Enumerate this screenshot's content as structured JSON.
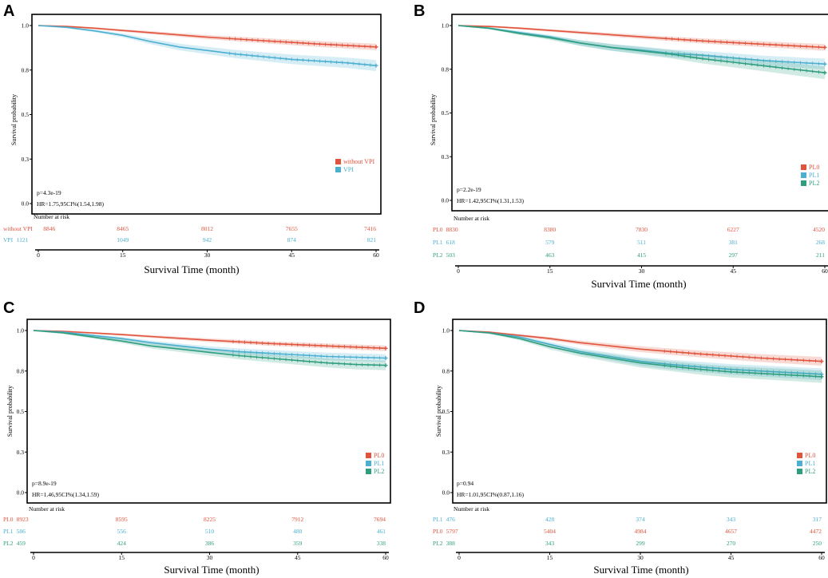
{
  "chart_data": [
    {
      "type": "line",
      "panel": "A",
      "ylabel": "Survival probability",
      "xlabel": "Survival Time (month)",
      "yticks": [
        "1.0",
        "0.8",
        "0.5",
        "0.3",
        "0.0"
      ],
      "xticks": [
        "0",
        "15",
        "30",
        "45",
        "60"
      ],
      "xlim": [
        0,
        60
      ],
      "ylim": [
        0,
        1
      ],
      "p_value": "p=4.3e-19",
      "hr": "HR=1.75,95CI%(1.54,1.98)",
      "risk_title": "Number at risk",
      "series": [
        {
          "name": "without VPI",
          "color": "#e0533c",
          "x": [
            0,
            5,
            10,
            15,
            20,
            30,
            40,
            50,
            60
          ],
          "y": [
            1.0,
            0.995,
            0.985,
            0.972,
            0.96,
            0.935,
            0.915,
            0.896,
            0.88
          ],
          "risk": [
            "8846",
            "8465",
            "8012",
            "7655",
            "7416"
          ]
        },
        {
          "name": "VPI",
          "color": "#4bafd0",
          "x": [
            0,
            5,
            10,
            15,
            20,
            25,
            30,
            35,
            40,
            45,
            50,
            55,
            60
          ],
          "y": [
            1.0,
            0.99,
            0.97,
            0.945,
            0.91,
            0.88,
            0.86,
            0.84,
            0.825,
            0.81,
            0.8,
            0.79,
            0.775
          ],
          "risk": [
            "1121",
            "1049",
            "942",
            "874",
            "821"
          ]
        }
      ]
    },
    {
      "type": "line",
      "panel": "B",
      "ylabel": "Survival probability",
      "xlabel": "Survival Time (month)",
      "yticks": [
        "1.0",
        "0.8",
        "0.5",
        "0.3",
        "0.0"
      ],
      "xticks": [
        "0",
        "15",
        "30",
        "45",
        "60"
      ],
      "xlim": [
        0,
        60
      ],
      "ylim": [
        0,
        1
      ],
      "p_value": "p=2.2e-19",
      "hr": "HR=1.42,95CI%(1.31,1.53)",
      "risk_title": "Number at risk",
      "series": [
        {
          "name": "PL0",
          "color": "#e0533c",
          "x": [
            0,
            5,
            10,
            15,
            20,
            30,
            40,
            50,
            60
          ],
          "y": [
            1.0,
            0.995,
            0.985,
            0.972,
            0.96,
            0.935,
            0.912,
            0.893,
            0.875
          ],
          "risk": [
            "8830",
            "8380",
            "7830",
            "6227",
            "4520"
          ]
        },
        {
          "name": "PL1",
          "color": "#4bafd0",
          "x": [
            0,
            5,
            10,
            15,
            20,
            25,
            30,
            35,
            40,
            45,
            50,
            55,
            60
          ],
          "y": [
            1.0,
            0.985,
            0.96,
            0.935,
            0.9,
            0.875,
            0.86,
            0.84,
            0.83,
            0.815,
            0.8,
            0.79,
            0.78
          ],
          "risk": [
            "618",
            "579",
            "511",
            "381",
            "268"
          ]
        },
        {
          "name": "PL2",
          "color": "#2e9e7f",
          "x": [
            0,
            5,
            10,
            15,
            20,
            25,
            30,
            35,
            40,
            45,
            50,
            55,
            60
          ],
          "y": [
            1.0,
            0.985,
            0.955,
            0.93,
            0.9,
            0.875,
            0.855,
            0.835,
            0.81,
            0.79,
            0.77,
            0.75,
            0.73
          ],
          "risk": [
            "503",
            "463",
            "415",
            "297",
            "211"
          ]
        }
      ]
    },
    {
      "type": "line",
      "panel": "C",
      "ylabel": "Survival probability",
      "xlabel": "Survival Time (month)",
      "yticks": [
        "1.0",
        "0.8",
        "0.5",
        "0.3",
        "0.0"
      ],
      "xticks": [
        "0",
        "15",
        "30",
        "45",
        "60"
      ],
      "xlim": [
        0,
        60
      ],
      "ylim": [
        0,
        1
      ],
      "p_value": "p=8.9e-19",
      "hr": "HR=1.46,95CI%(1.34,1.59)",
      "risk_title": "Number at risk",
      "series": [
        {
          "name": "PL0",
          "color": "#e0533c",
          "x": [
            0,
            5,
            10,
            15,
            20,
            30,
            40,
            50,
            60
          ],
          "y": [
            1.0,
            0.995,
            0.985,
            0.975,
            0.963,
            0.94,
            0.92,
            0.905,
            0.89
          ],
          "risk": [
            "8923",
            "8595",
            "8225",
            "7912",
            "7694"
          ]
        },
        {
          "name": "PL1",
          "color": "#4bafd0",
          "x": [
            0,
            5,
            10,
            15,
            20,
            25,
            30,
            35,
            40,
            45,
            50,
            55,
            60
          ],
          "y": [
            1.0,
            0.99,
            0.97,
            0.95,
            0.925,
            0.905,
            0.885,
            0.87,
            0.86,
            0.85,
            0.84,
            0.835,
            0.83
          ],
          "risk": [
            "586",
            "556",
            "510",
            "480",
            "461"
          ]
        },
        {
          "name": "PL2",
          "color": "#2e9e7f",
          "x": [
            0,
            5,
            10,
            15,
            20,
            25,
            30,
            35,
            40,
            45,
            50,
            55,
            60
          ],
          "y": [
            1.0,
            0.985,
            0.96,
            0.935,
            0.905,
            0.885,
            0.865,
            0.845,
            0.83,
            0.815,
            0.8,
            0.79,
            0.785
          ],
          "risk": [
            "459",
            "424",
            "386",
            "359",
            "338"
          ]
        }
      ]
    },
    {
      "type": "line",
      "panel": "D",
      "ylabel": "Survival probability",
      "xlabel": "Survival Time (month)",
      "yticks": [
        "1.0",
        "0.8",
        "0.5",
        "0.3",
        "0.0"
      ],
      "xticks": [
        "0",
        "15",
        "30",
        "45",
        "60"
      ],
      "xlim": [
        0,
        60
      ],
      "ylim": [
        0,
        1
      ],
      "p_value": "p=0.94",
      "hr": "HR=1.01,95CI%(0.87,1.16)",
      "risk_title": "Number at risk",
      "series": [
        {
          "name": "PL0",
          "color": "#e0533c",
          "x": [
            0,
            5,
            10,
            15,
            20,
            30,
            40,
            50,
            60
          ],
          "y": [
            1.0,
            0.99,
            0.97,
            0.95,
            0.925,
            0.885,
            0.855,
            0.83,
            0.81
          ],
          "risk": [
            "5797",
            "5404",
            "4984",
            "4657",
            "4472"
          ]
        },
        {
          "name": "PL1",
          "color": "#4bafd0",
          "x": [
            0,
            5,
            10,
            15,
            20,
            25,
            30,
            35,
            40,
            45,
            50,
            55,
            60
          ],
          "y": [
            1.0,
            0.985,
            0.96,
            0.915,
            0.87,
            0.84,
            0.81,
            0.79,
            0.775,
            0.76,
            0.75,
            0.74,
            0.73
          ],
          "risk": [
            "476",
            "428",
            "374",
            "343",
            "317"
          ]
        },
        {
          "name": "PL2",
          "color": "#2e9e7f",
          "x": [
            0,
            5,
            10,
            15,
            20,
            25,
            30,
            35,
            40,
            45,
            50,
            55,
            60
          ],
          "y": [
            1.0,
            0.985,
            0.95,
            0.9,
            0.86,
            0.83,
            0.8,
            0.78,
            0.76,
            0.745,
            0.735,
            0.725,
            0.715
          ],
          "risk": [
            "388",
            "343",
            "299",
            "270",
            "250"
          ]
        }
      ],
      "risk_order": [
        1,
        0,
        2
      ]
    }
  ]
}
